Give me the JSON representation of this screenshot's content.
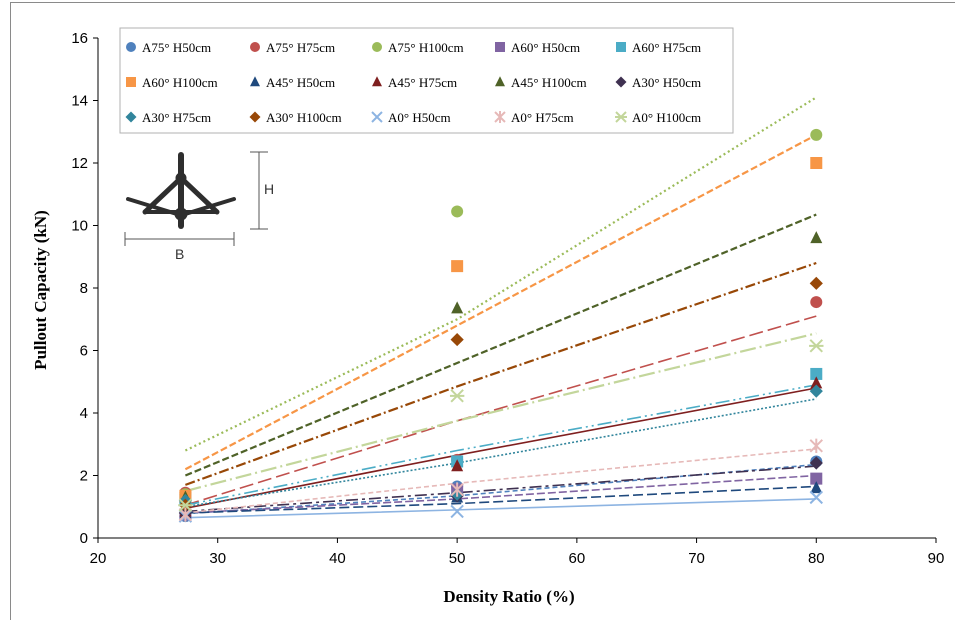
{
  "chart_data": {
    "type": "scatter",
    "xlabel": "Density Ratio (%)",
    "ylabel": "Pullout Capacity (kN)",
    "xlim": [
      20,
      90
    ],
    "ylim": [
      0,
      16
    ],
    "x_ticks": [
      20,
      30,
      40,
      50,
      60,
      70,
      80,
      90
    ],
    "y_ticks": [
      0,
      2,
      4,
      6,
      8,
      10,
      12,
      14,
      16
    ],
    "grid": false,
    "legend_position": "top-left",
    "x": [
      27.3,
      50,
      80
    ],
    "inset_labels": {
      "height": "H",
      "width": "B"
    },
    "series": [
      {
        "name": "A75° H50cm",
        "values": [
          0.7,
          1.65,
          2.45
        ],
        "color": "#4F81BD",
        "marker": "circle",
        "trend": [
          0.78,
          1.35,
          2.35
        ],
        "dash": "5,3"
      },
      {
        "name": "A75° H75cm",
        "values": [
          1.45,
          2.5,
          7.55
        ],
        "color": "#C0504D",
        "marker": "circle",
        "trend": [
          1.05,
          3.75,
          7.1
        ],
        "dash": "14,5"
      },
      {
        "name": "A75° H100cm",
        "values": [
          1.4,
          10.45,
          12.9
        ],
        "color": "#9BBB59",
        "marker": "circle",
        "trend": [
          2.8,
          7.0,
          14.1
        ],
        "dash": "2,3"
      },
      {
        "name": "A60° H50cm",
        "values": [
          0.75,
          1.55,
          1.9
        ],
        "color": "#8064A2",
        "marker": "square",
        "trend": [
          0.8,
          1.25,
          2.0
        ],
        "dash": "8,3"
      },
      {
        "name": "A60° H75cm",
        "values": [
          1.2,
          2.45,
          5.25
        ],
        "color": "#4BACC6",
        "marker": "square",
        "trend": [
          1.05,
          2.8,
          4.9
        ],
        "dash": "14,4,2,4,2,4"
      },
      {
        "name": "A60° H100cm",
        "values": [
          1.35,
          8.7,
          12.0
        ],
        "color": "#F79646",
        "marker": "square",
        "trend": [
          2.2,
          6.8,
          12.9
        ],
        "dash": "7,3"
      },
      {
        "name": "A45° H50cm",
        "values": [
          0.8,
          1.3,
          1.6
        ],
        "color": "#1F497D",
        "marker": "triangle",
        "trend": [
          0.8,
          1.1,
          1.65
        ],
        "dash": "10,4"
      },
      {
        "name": "A45° H75cm",
        "values": [
          0.85,
          2.3,
          4.95
        ],
        "color": "#7F1F1F",
        "marker": "triangle",
        "trend": [
          0.95,
          2.65,
          4.8
        ],
        "dash": ""
      },
      {
        "name": "A45° H100cm",
        "values": [
          1.3,
          7.35,
          9.6
        ],
        "color": "#4F6228",
        "marker": "triangle",
        "trend": [
          2.0,
          5.6,
          10.35
        ],
        "dash": "7,3"
      },
      {
        "name": "A30° H50cm",
        "values": [
          0.8,
          1.35,
          2.4
        ],
        "color": "#3F3151",
        "marker": "diamond",
        "trend": [
          0.85,
          1.45,
          2.3
        ],
        "dash": "12,4,3,4"
      },
      {
        "name": "A30° H75cm",
        "values": [
          1.2,
          1.4,
          4.7
        ],
        "color": "#31859C",
        "marker": "diamond",
        "trend": [
          1.0,
          2.4,
          4.45
        ],
        "dash": "2,2"
      },
      {
        "name": "A30° H100cm",
        "values": [
          1.05,
          6.35,
          8.15
        ],
        "color": "#984807",
        "marker": "diamond",
        "trend": [
          1.7,
          4.85,
          8.8
        ],
        "dash": "10,3,2,3"
      },
      {
        "name": "A0° H50cm",
        "values": [
          0.7,
          0.85,
          1.3
        ],
        "color": "#8DB4E2",
        "marker": "x",
        "trend": [
          0.65,
          0.9,
          1.25
        ],
        "dash": ""
      },
      {
        "name": "A0° H75cm",
        "values": [
          0.75,
          1.55,
          2.95
        ],
        "color": "#E6B9B8",
        "marker": "star",
        "trend": [
          0.8,
          1.75,
          2.85
        ],
        "dash": "5,3"
      },
      {
        "name": "A0° H100cm",
        "values": [
          1.05,
          4.55,
          6.15
        ],
        "color": "#C3D69B",
        "marker": "asterisk",
        "trend": [
          1.5,
          3.75,
          6.55
        ],
        "dash": "16,4,2,4"
      }
    ]
  }
}
